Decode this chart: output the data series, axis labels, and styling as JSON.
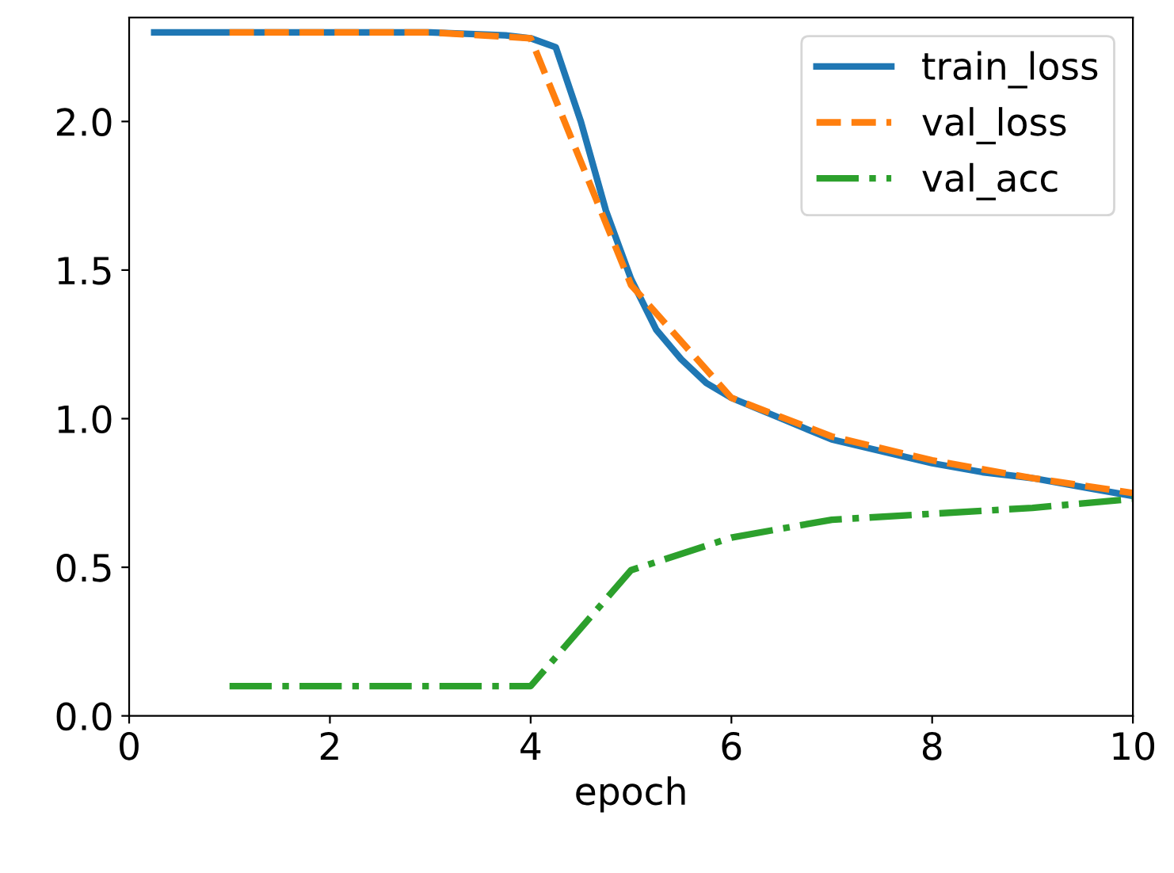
{
  "chart_data": {
    "type": "line",
    "xlabel": "epoch",
    "series": [
      {
        "name": "train_loss",
        "color": "#1f77b4",
        "line_style": "solid",
        "x": [
          0.25,
          1,
          2,
          3,
          3.75,
          4.0,
          4.25,
          4.5,
          4.75,
          5.0,
          5.25,
          5.5,
          5.75,
          6.0,
          6.5,
          7.0,
          7.5,
          8.0,
          8.5,
          9.0,
          9.5,
          10.0
        ],
        "values": [
          2.3,
          2.3,
          2.3,
          2.3,
          2.29,
          2.28,
          2.25,
          2.0,
          1.7,
          1.47,
          1.3,
          1.2,
          1.12,
          1.07,
          1.0,
          0.93,
          0.89,
          0.85,
          0.82,
          0.8,
          0.77,
          0.74
        ]
      },
      {
        "name": "val_loss",
        "color": "#ff7f0e",
        "line_style": "dashed",
        "x": [
          1,
          2,
          3,
          4,
          5,
          6,
          7,
          8,
          9,
          10
        ],
        "values": [
          2.3,
          2.3,
          2.3,
          2.28,
          1.45,
          1.07,
          0.94,
          0.86,
          0.8,
          0.75
        ]
      },
      {
        "name": "val_acc",
        "color": "#2ca02c",
        "line_style": "dashdot",
        "x": [
          1,
          2,
          3,
          4,
          5,
          6,
          7,
          8,
          9,
          10
        ],
        "values": [
          0.1,
          0.1,
          0.1,
          0.1,
          0.49,
          0.6,
          0.66,
          0.68,
          0.7,
          0.73
        ]
      }
    ],
    "xlim": [
      0,
      10
    ],
    "xticks": [
      0,
      2,
      4,
      6,
      8,
      10
    ],
    "ylim": [
      0,
      2.35
    ],
    "yticks": [
      {
        "value": 0,
        "label": "0.0"
      },
      0.5,
      {
        "value": 1,
        "label": "1.0"
      },
      1.5,
      {
        "value": 2,
        "label": "2.0"
      }
    ],
    "legend": "top right",
    "grid": false
  }
}
